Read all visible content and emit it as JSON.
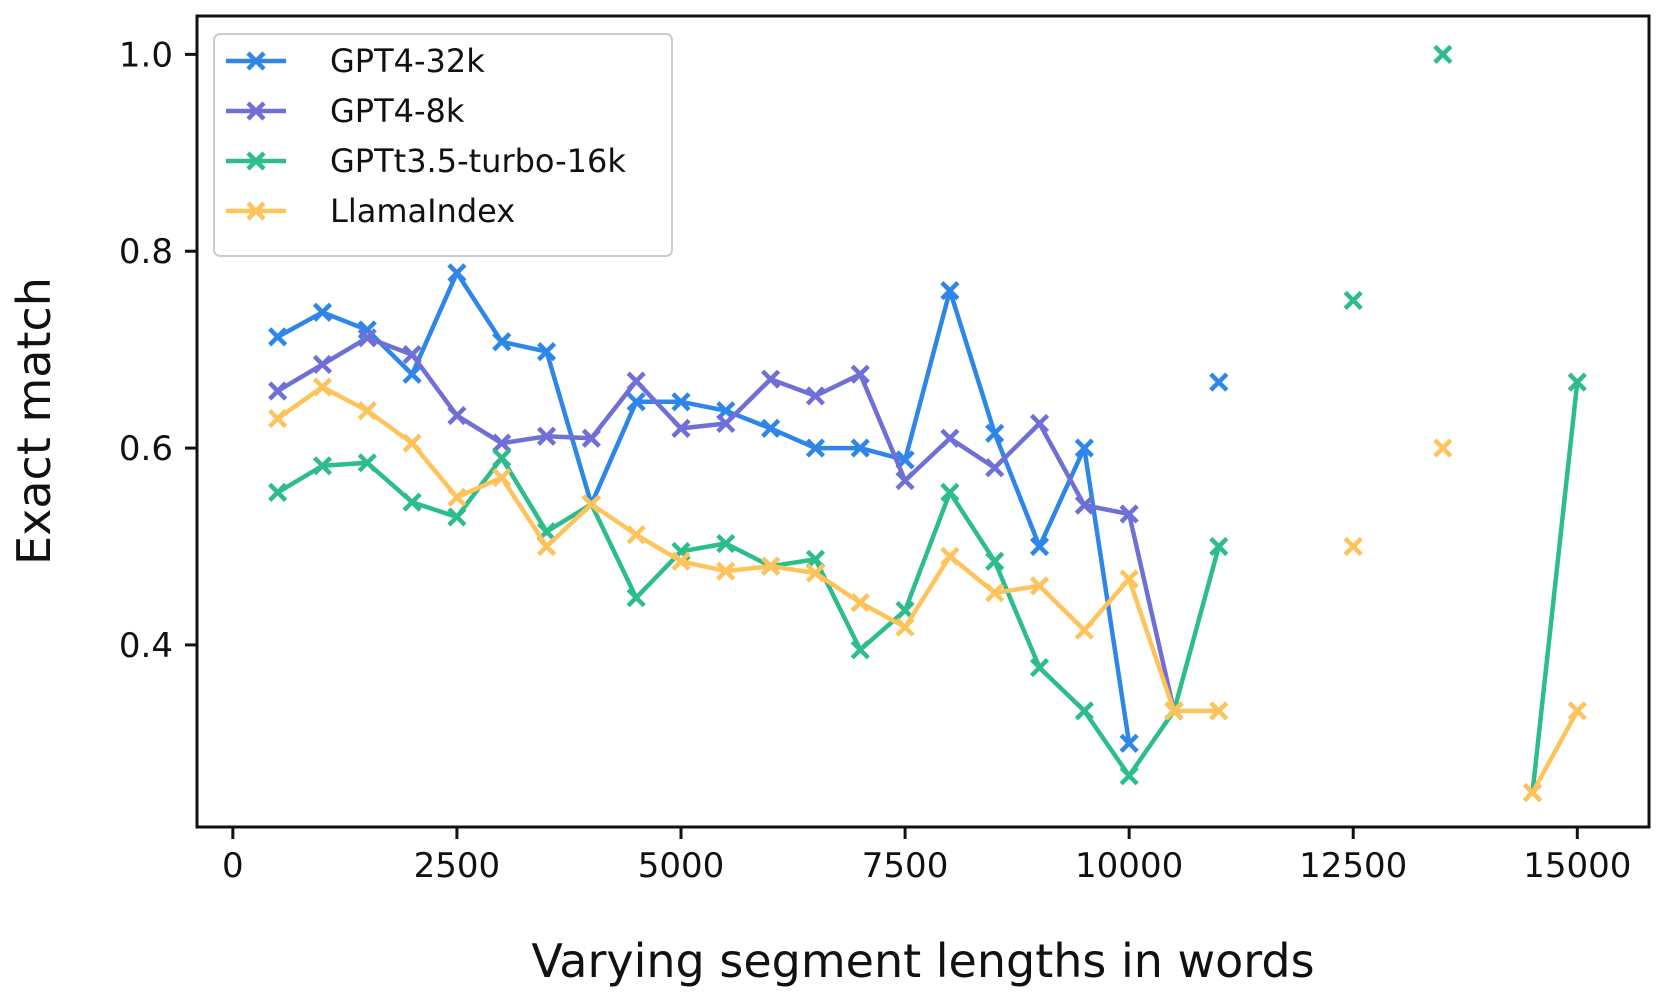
{
  "chart_data": {
    "type": "line",
    "title": "",
    "xlabel": "Varying segment lengths in words",
    "ylabel": "Exact match",
    "xlim": [
      -400,
      15800
    ],
    "ylim": [
      0.215,
      1.039
    ],
    "xticks": [
      0,
      2500,
      5000,
      7500,
      10000,
      12500,
      15000
    ],
    "yticks": [
      0.4,
      0.6,
      0.8,
      1.0
    ],
    "xtick_labels": [
      "0",
      "2500",
      "5000",
      "7500",
      "10000",
      "12500",
      "15000"
    ],
    "ytick_labels": [
      "0.4",
      "0.6",
      "0.8",
      "1.0"
    ],
    "grid": false,
    "legend_position": "top-left",
    "marker": "x",
    "series": [
      {
        "name": "GPT4-32k",
        "color": "#2e86e8",
        "points": [
          [
            500,
            0.713
          ],
          [
            1000,
            0.738
          ],
          [
            1500,
            0.72
          ],
          [
            2000,
            0.675
          ],
          [
            2500,
            0.778
          ],
          [
            3000,
            0.708
          ],
          [
            3500,
            0.698
          ],
          [
            4000,
            0.543
          ],
          [
            4500,
            0.647
          ],
          [
            5000,
            0.647
          ],
          [
            5500,
            0.638
          ],
          [
            6000,
            0.62
          ],
          [
            6500,
            0.6
          ],
          [
            7000,
            0.6
          ],
          [
            7500,
            0.588
          ],
          [
            8000,
            0.76
          ],
          [
            8500,
            0.615
          ],
          [
            9000,
            0.5
          ],
          [
            9500,
            0.6
          ],
          [
            10000,
            0.3
          ],
          [
            11000,
            0.667
          ]
        ],
        "segments": [
          [
            0,
            19
          ],
          [
            20,
            20
          ]
        ]
      },
      {
        "name": "GPT4-8k",
        "color": "#6f6fd6",
        "points": [
          [
            500,
            0.658
          ],
          [
            1000,
            0.685
          ],
          [
            1500,
            0.712
          ],
          [
            2000,
            0.695
          ],
          [
            2500,
            0.633
          ],
          [
            3000,
            0.605
          ],
          [
            3500,
            0.612
          ],
          [
            4000,
            0.61
          ],
          [
            4500,
            0.668
          ],
          [
            5000,
            0.62
          ],
          [
            5500,
            0.625
          ],
          [
            6000,
            0.67
          ],
          [
            6500,
            0.653
          ],
          [
            7000,
            0.675
          ],
          [
            7500,
            0.567
          ],
          [
            8000,
            0.61
          ],
          [
            8500,
            0.58
          ],
          [
            9000,
            0.625
          ],
          [
            9500,
            0.542
          ],
          [
            10000,
            0.533
          ],
          [
            10500,
            0.333
          ]
        ],
        "segments": [
          [
            0,
            20
          ]
        ]
      },
      {
        "name": "GPTt3.5-turbo-16k",
        "color": "#2dbd8c",
        "points": [
          [
            500,
            0.555
          ],
          [
            1000,
            0.582
          ],
          [
            1500,
            0.585
          ],
          [
            2000,
            0.545
          ],
          [
            2500,
            0.53
          ],
          [
            3000,
            0.59
          ],
          [
            3500,
            0.515
          ],
          [
            4000,
            0.543
          ],
          [
            4500,
            0.448
          ],
          [
            5000,
            0.495
          ],
          [
            5500,
            0.503
          ],
          [
            6000,
            0.48
          ],
          [
            6500,
            0.487
          ],
          [
            7000,
            0.395
          ],
          [
            7500,
            0.435
          ],
          [
            8000,
            0.555
          ],
          [
            8500,
            0.485
          ],
          [
            9000,
            0.377
          ],
          [
            9500,
            0.333
          ],
          [
            10000,
            0.267
          ],
          [
            10500,
            0.333
          ],
          [
            11000,
            0.5
          ],
          [
            12500,
            0.75
          ],
          [
            13500,
            1.0
          ],
          [
            14500,
            0.25
          ],
          [
            15000,
            0.667
          ]
        ],
        "segments": [
          [
            0,
            21
          ],
          [
            22,
            22
          ],
          [
            23,
            23
          ],
          [
            24,
            25
          ]
        ]
      },
      {
        "name": "LlamaIndex",
        "color": "#ffc35c",
        "points": [
          [
            500,
            0.63
          ],
          [
            1000,
            0.662
          ],
          [
            1500,
            0.638
          ],
          [
            2000,
            0.605
          ],
          [
            2500,
            0.55
          ],
          [
            3000,
            0.57
          ],
          [
            3500,
            0.5
          ],
          [
            4000,
            0.543
          ],
          [
            4500,
            0.512
          ],
          [
            5000,
            0.485
          ],
          [
            5500,
            0.475
          ],
          [
            6000,
            0.48
          ],
          [
            6500,
            0.473
          ],
          [
            7000,
            0.443
          ],
          [
            7500,
            0.418
          ],
          [
            8000,
            0.49
          ],
          [
            8500,
            0.453
          ],
          [
            9000,
            0.46
          ],
          [
            9500,
            0.415
          ],
          [
            10000,
            0.467
          ],
          [
            10500,
            0.333
          ],
          [
            11000,
            0.333
          ],
          [
            12500,
            0.5
          ],
          [
            13500,
            0.6
          ],
          [
            14500,
            0.25
          ],
          [
            15000,
            0.333
          ]
        ],
        "segments": [
          [
            0,
            21
          ],
          [
            22,
            22
          ],
          [
            23,
            23
          ],
          [
            24,
            25
          ]
        ]
      }
    ]
  }
}
